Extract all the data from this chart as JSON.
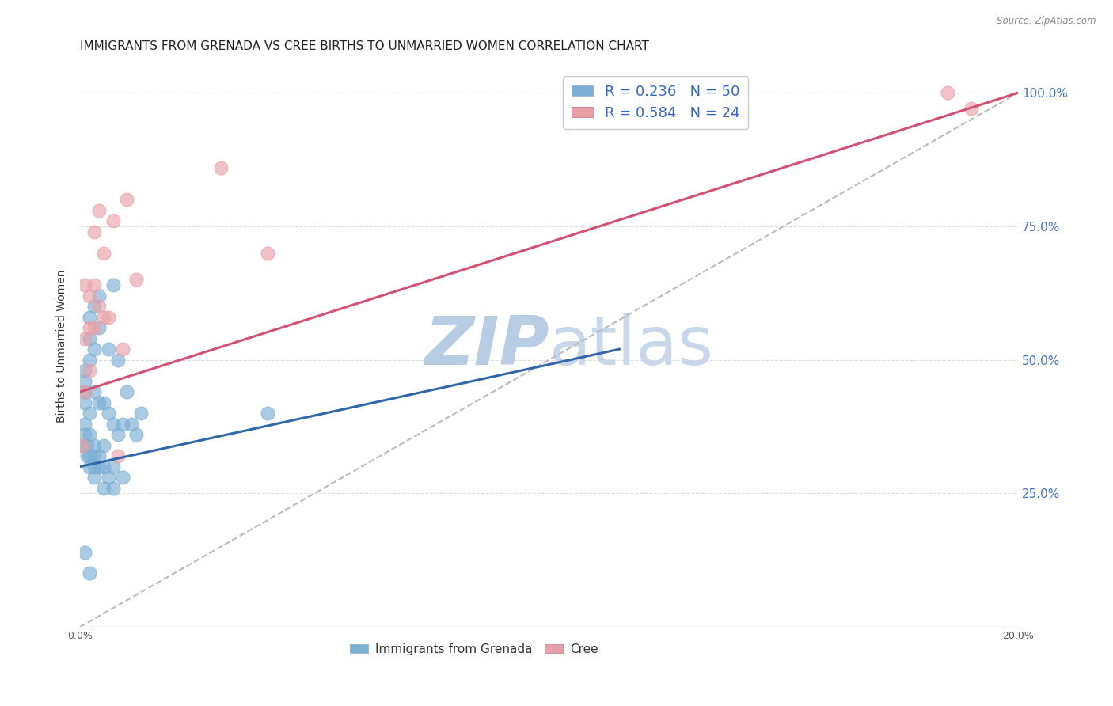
{
  "title": "IMMIGRANTS FROM GRENADA VS CREE BIRTHS TO UNMARRIED WOMEN CORRELATION CHART",
  "source": "Source: ZipAtlas.com",
  "ylabel": "Births to Unmarried Women",
  "legend_label1": "Immigrants from Grenada",
  "legend_label2": "Cree",
  "r1": 0.236,
  "n1": 50,
  "r2": 0.584,
  "n2": 24,
  "color1": "#7bafd4",
  "color1_line": "#3166a8",
  "color2": "#e8a0a8",
  "color2_line": "#d45070",
  "color_ref_line": "#bbbbbb",
  "watermark_zip": "ZIP",
  "watermark_atlas": "atlas",
  "xmin": 0.0,
  "xmax": 0.2,
  "ymin": 0.0,
  "ymax": 1.05,
  "blue_dots_x": [
    0.0005,
    0.001,
    0.001,
    0.001,
    0.001,
    0.001,
    0.001,
    0.0015,
    0.0015,
    0.002,
    0.002,
    0.002,
    0.002,
    0.002,
    0.002,
    0.002,
    0.003,
    0.003,
    0.003,
    0.003,
    0.003,
    0.003,
    0.003,
    0.004,
    0.004,
    0.004,
    0.004,
    0.004,
    0.005,
    0.005,
    0.005,
    0.005,
    0.006,
    0.006,
    0.006,
    0.007,
    0.007,
    0.007,
    0.007,
    0.008,
    0.008,
    0.009,
    0.009,
    0.01,
    0.011,
    0.012,
    0.013,
    0.04,
    0.001,
    0.002
  ],
  "blue_dots_y": [
    0.34,
    0.36,
    0.38,
    0.42,
    0.44,
    0.46,
    0.48,
    0.32,
    0.34,
    0.3,
    0.32,
    0.36,
    0.4,
    0.5,
    0.54,
    0.58,
    0.28,
    0.3,
    0.32,
    0.34,
    0.44,
    0.52,
    0.6,
    0.3,
    0.32,
    0.42,
    0.56,
    0.62,
    0.26,
    0.3,
    0.34,
    0.42,
    0.28,
    0.4,
    0.52,
    0.26,
    0.3,
    0.38,
    0.64,
    0.36,
    0.5,
    0.28,
    0.38,
    0.44,
    0.38,
    0.36,
    0.4,
    0.4,
    0.14,
    0.1
  ],
  "pink_dots_x": [
    0.0005,
    0.001,
    0.001,
    0.001,
    0.002,
    0.002,
    0.002,
    0.003,
    0.003,
    0.003,
    0.004,
    0.004,
    0.005,
    0.005,
    0.006,
    0.007,
    0.008,
    0.009,
    0.01,
    0.012,
    0.03,
    0.04,
    0.185,
    0.19
  ],
  "pink_dots_y": [
    0.34,
    0.44,
    0.54,
    0.64,
    0.48,
    0.56,
    0.62,
    0.56,
    0.64,
    0.74,
    0.6,
    0.78,
    0.58,
    0.7,
    0.58,
    0.76,
    0.32,
    0.52,
    0.8,
    0.65,
    0.86,
    0.7,
    1.0,
    0.97
  ],
  "blue_line_x0": 0.0,
  "blue_line_y0": 0.3,
  "blue_line_x1": 0.115,
  "blue_line_y1": 0.52,
  "pink_line_x0": 0.0,
  "pink_line_y0": 0.44,
  "pink_line_x1": 0.2,
  "pink_line_y1": 1.0,
  "ref_line_x0": 0.0,
  "ref_line_y0": 0.0,
  "ref_line_x1": 0.2,
  "ref_line_y1": 1.0,
  "ytick_labels_right": [
    "25.0%",
    "50.0%",
    "75.0%",
    "100.0%"
  ],
  "ytick_values_right": [
    0.25,
    0.5,
    0.75,
    1.0
  ],
  "xtick_labels": [
    "0.0%",
    "",
    "",
    "",
    "",
    "20.0%"
  ],
  "xtick_values": [
    0.0,
    0.04,
    0.08,
    0.12,
    0.16,
    0.2
  ],
  "grid_color": "#dddddd",
  "background_color": "#ffffff",
  "title_fontsize": 11,
  "axis_label_fontsize": 10,
  "tick_fontsize": 9,
  "watermark_color_zip": "#b8cce4",
  "watermark_color_atlas": "#c8d8ea",
  "watermark_fontsize": 62
}
